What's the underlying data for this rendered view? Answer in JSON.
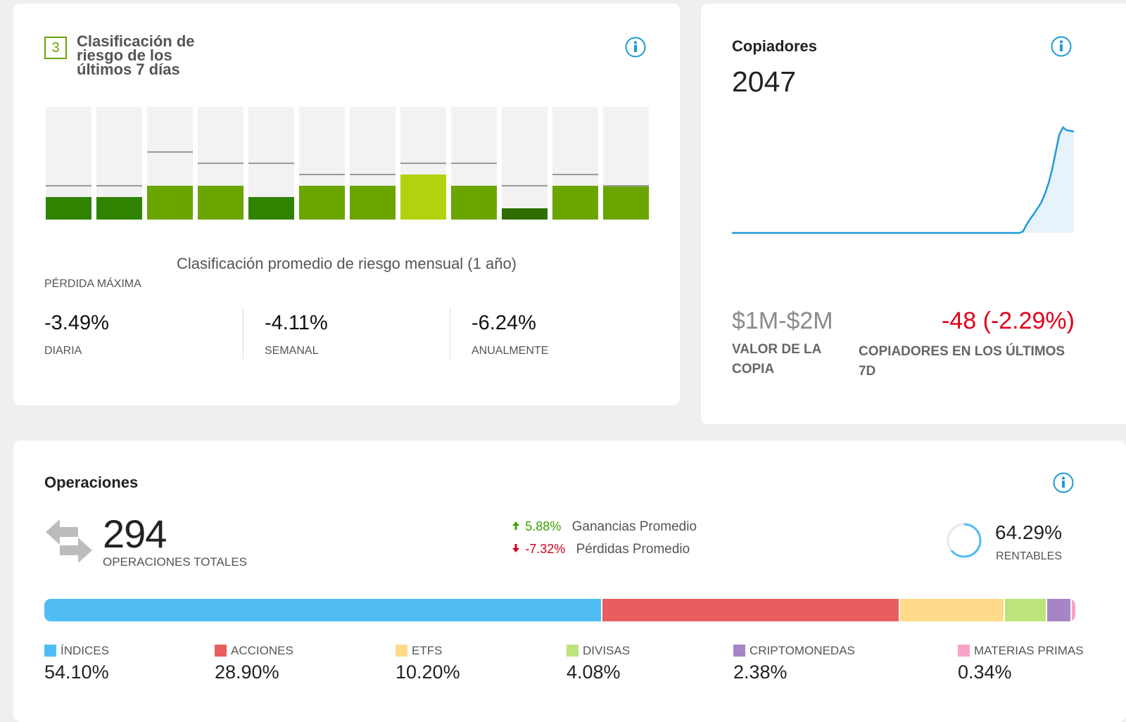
{
  "risk_card": {
    "score": "3",
    "title": "Clasificación de riesgo de los últimos 7 días",
    "monthly_caption": "Clasificación promedio de riesgo mensual (1 año)",
    "max_drawdown_label": "PÉRDIDA MÁXIMA",
    "monthly_risk_scores": [
      2,
      2,
      3,
      3,
      2,
      3,
      3,
      4,
      3,
      1,
      3,
      3
    ],
    "monthly_avg_scores": [
      3,
      3,
      6,
      5,
      5,
      4,
      4,
      5,
      5,
      3,
      4,
      3
    ],
    "score_colors": [
      "#2f6d00",
      "#2f8300",
      "#6aa500",
      "#b3d20d",
      "#c8dc1e",
      "#e6e600"
    ],
    "stats": [
      {
        "value": "-3.49%",
        "label": "DIARIA"
      },
      {
        "value": "-4.11%",
        "label": "SEMANAL"
      },
      {
        "value": "-6.24%",
        "label": "ANUALMENTE"
      }
    ]
  },
  "copiers_card": {
    "title": "Copiadores",
    "count": "2047",
    "trend": [
      0,
      0,
      0,
      0,
      0,
      0,
      0,
      0,
      0,
      0,
      0,
      0,
      0,
      0,
      0,
      0,
      0,
      0,
      0,
      0,
      0,
      0,
      0,
      0,
      0,
      0,
      0,
      0,
      0,
      0,
      0,
      0,
      0,
      0,
      0,
      0,
      0,
      0,
      0,
      0,
      0,
      0,
      0,
      0,
      0,
      0,
      0,
      0,
      0,
      0,
      0,
      0,
      0,
      0,
      0,
      0,
      0,
      0,
      0,
      0,
      0,
      0,
      0,
      0,
      0,
      0,
      0,
      0,
      0,
      0,
      0,
      0,
      0,
      0,
      0,
      0,
      0,
      0,
      0,
      0,
      2,
      12,
      20,
      27,
      35,
      43,
      55,
      70,
      90,
      115,
      140,
      150,
      146,
      145,
      144
    ],
    "copy_value": "$1M-$2M",
    "copy_value_label": "VALOR DE LA COPIA",
    "change": "-48 (-2.29%)",
    "change_label": "COPIADORES EN LOS ÚLTIMOS 7D",
    "line_color": "#1e9ad6",
    "area_color": "#e7f2fa"
  },
  "trades_card": {
    "title": "Operaciones",
    "total": "294",
    "total_label": "OPERACIONES TOTALES",
    "avg_gain": {
      "value": "5.88%",
      "label": "Ganancias Promedio",
      "color": "#3aa300"
    },
    "avg_loss": {
      "value": "-7.32%",
      "label": "Pérdidas Promedio",
      "color": "#d6001c"
    },
    "profitable_pct": "64.29%",
    "profitable_fraction": 0.6429,
    "profitable_label": "RENTABLES",
    "allocation": [
      {
        "name": "ÍNDICES",
        "pct": "54.10%",
        "value": 54.1,
        "color": "#4fbdf4"
      },
      {
        "name": "ACCIONES",
        "pct": "28.90%",
        "value": 28.9,
        "color": "#e85e5e"
      },
      {
        "name": "ETFS",
        "pct": "10.20%",
        "value": 10.2,
        "color": "#fedb8b"
      },
      {
        "name": "DIVISAS",
        "pct": "4.08%",
        "value": 4.08,
        "color": "#bde47c"
      },
      {
        "name": "CRIPTOMONEDAS",
        "pct": "2.38%",
        "value": 2.38,
        "color": "#a685c5"
      },
      {
        "name": "MATERIAS PRIMAS",
        "pct": "0.34%",
        "value": 0.34,
        "color": "#f9a3c8"
      }
    ]
  },
  "icons": {
    "info": "info-icon",
    "trades": "swap-arrows-icon",
    "up": "arrow-up-icon",
    "down": "arrow-down-icon",
    "donut": "profit-donut-icon"
  },
  "info_color": "#1e9ad6"
}
